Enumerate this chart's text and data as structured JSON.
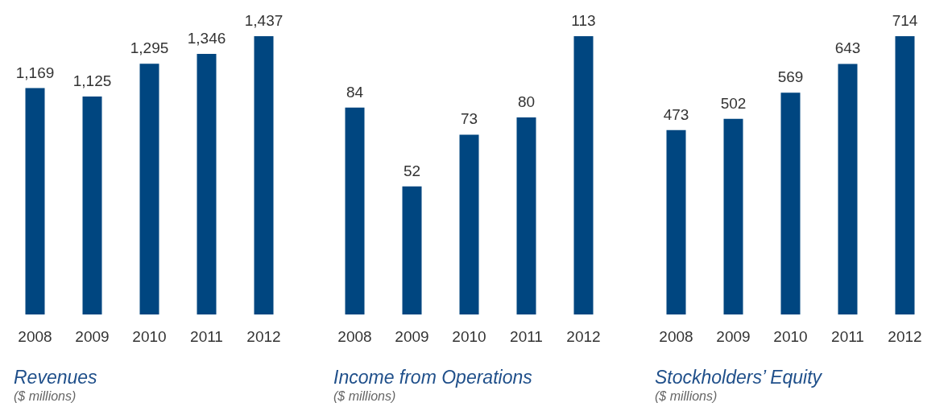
{
  "chart_data": [
    {
      "type": "bar",
      "title": "Revenues",
      "subtitle": "($ millions)",
      "categories": [
        "2008",
        "2009",
        "2010",
        "2011",
        "2012"
      ],
      "values": [
        1169,
        1125,
        1295,
        1346,
        1437
      ],
      "value_labels": [
        "1,169",
        "1,125",
        "1,295",
        "1,346",
        "1,437"
      ],
      "color": "#004680"
    },
    {
      "type": "bar",
      "title": "Income from Operations",
      "subtitle": "($ millions)",
      "categories": [
        "2008",
        "2009",
        "2010",
        "2011",
        "2012"
      ],
      "values": [
        84,
        52,
        73,
        80,
        113
      ],
      "color": "#004680",
      "data_labels": true
    },
    {
      "type": "bar",
      "title": "Stockholders’ Equity",
      "subtitle": "($ millions)",
      "categories": [
        "2008",
        "2009",
        "2010",
        "2011",
        "2012"
      ],
      "values": [
        473,
        502,
        569,
        643,
        714
      ],
      "color": "#004680",
      "data_labels": true
    }
  ]
}
